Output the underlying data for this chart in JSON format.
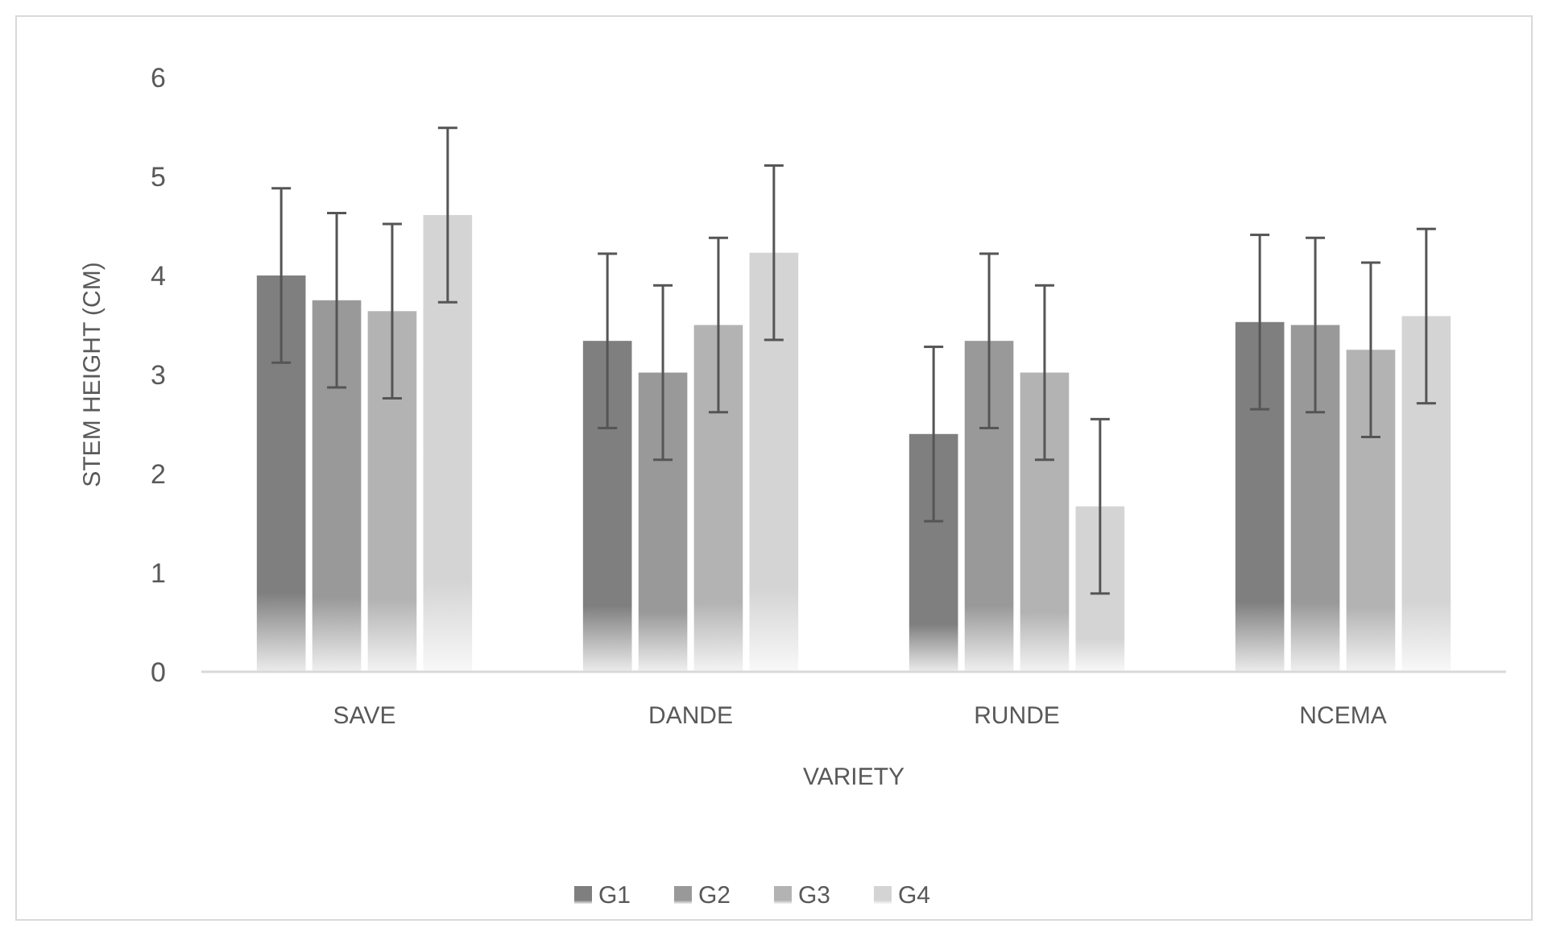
{
  "chart_data": {
    "type": "bar",
    "xlabel": "VARIETY",
    "ylabel": "STEM HEIGHT (CM)",
    "categories": [
      "SAVE",
      "DANDE",
      "RUNDE",
      "NCEMA"
    ],
    "series": [
      {
        "name": "G1",
        "color": "#7f7f7f",
        "values": [
          4.0,
          3.34,
          2.4,
          3.53
        ],
        "errors": [
          0.88,
          0.88,
          0.88,
          0.88
        ]
      },
      {
        "name": "G2",
        "color": "#999999",
        "values": [
          3.75,
          3.02,
          3.34,
          3.5
        ],
        "errors": [
          0.88,
          0.88,
          0.88,
          0.88
        ]
      },
      {
        "name": "G3",
        "color": "#b3b3b3",
        "values": [
          3.64,
          3.5,
          3.02,
          3.25
        ],
        "errors": [
          0.88,
          0.88,
          0.88,
          0.88
        ]
      },
      {
        "name": "G4",
        "color": "#d4d4d4",
        "values": [
          4.61,
          4.23,
          1.67,
          3.59
        ],
        "errors": [
          0.88,
          0.88,
          0.88,
          0.88
        ]
      }
    ],
    "ylim": [
      0,
      6
    ],
    "yticks": [
      0,
      1,
      2,
      3,
      4,
      5,
      6
    ],
    "grid": false,
    "legend": "bottom"
  }
}
